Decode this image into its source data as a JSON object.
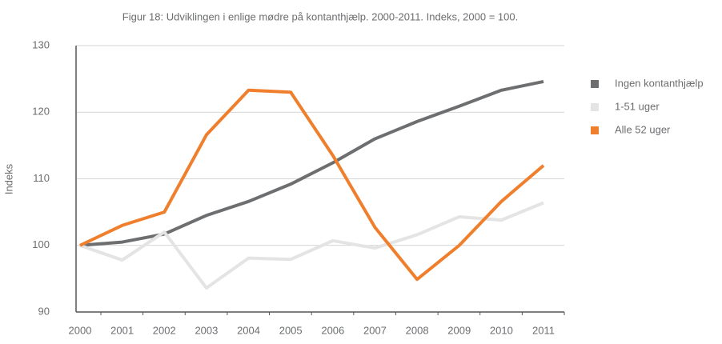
{
  "chart_data": {
    "type": "line",
    "title": "Figur 18: Udviklingen i enlige mødre på kontanthjælp. 2000-2011. Indeks, 2000 = 100.",
    "ylabel": "Indeks",
    "categories": [
      "2000",
      "2001",
      "2002",
      "2003",
      "2004",
      "2005",
      "2006",
      "2007",
      "2008",
      "2009",
      "2010",
      "2011"
    ],
    "series": [
      {
        "name": "Ingen kontanthjælp",
        "color": "#6d6e70",
        "values": [
          100,
          100.5,
          101.7,
          104.5,
          106.6,
          109.2,
          112.4,
          116,
          118.6,
          120.9,
          123.3,
          124.6
        ]
      },
      {
        "name": "1-51 uger",
        "color": "#e4e4e4",
        "values": [
          100,
          97.8,
          102,
          93.6,
          98.1,
          97.9,
          100.7,
          99.6,
          101.6,
          104.3,
          103.8,
          106.4
        ]
      },
      {
        "name": "Alle 52 uger",
        "color": "#f07f2d",
        "values": [
          100,
          103,
          105,
          116.6,
          123.3,
          123,
          113.5,
          102.7,
          94.9,
          100,
          106.6,
          112
        ]
      }
    ],
    "ylim": [
      90,
      130
    ],
    "yticks": [
      90,
      100,
      110,
      120,
      130
    ],
    "grid": true,
    "legend": "right"
  }
}
